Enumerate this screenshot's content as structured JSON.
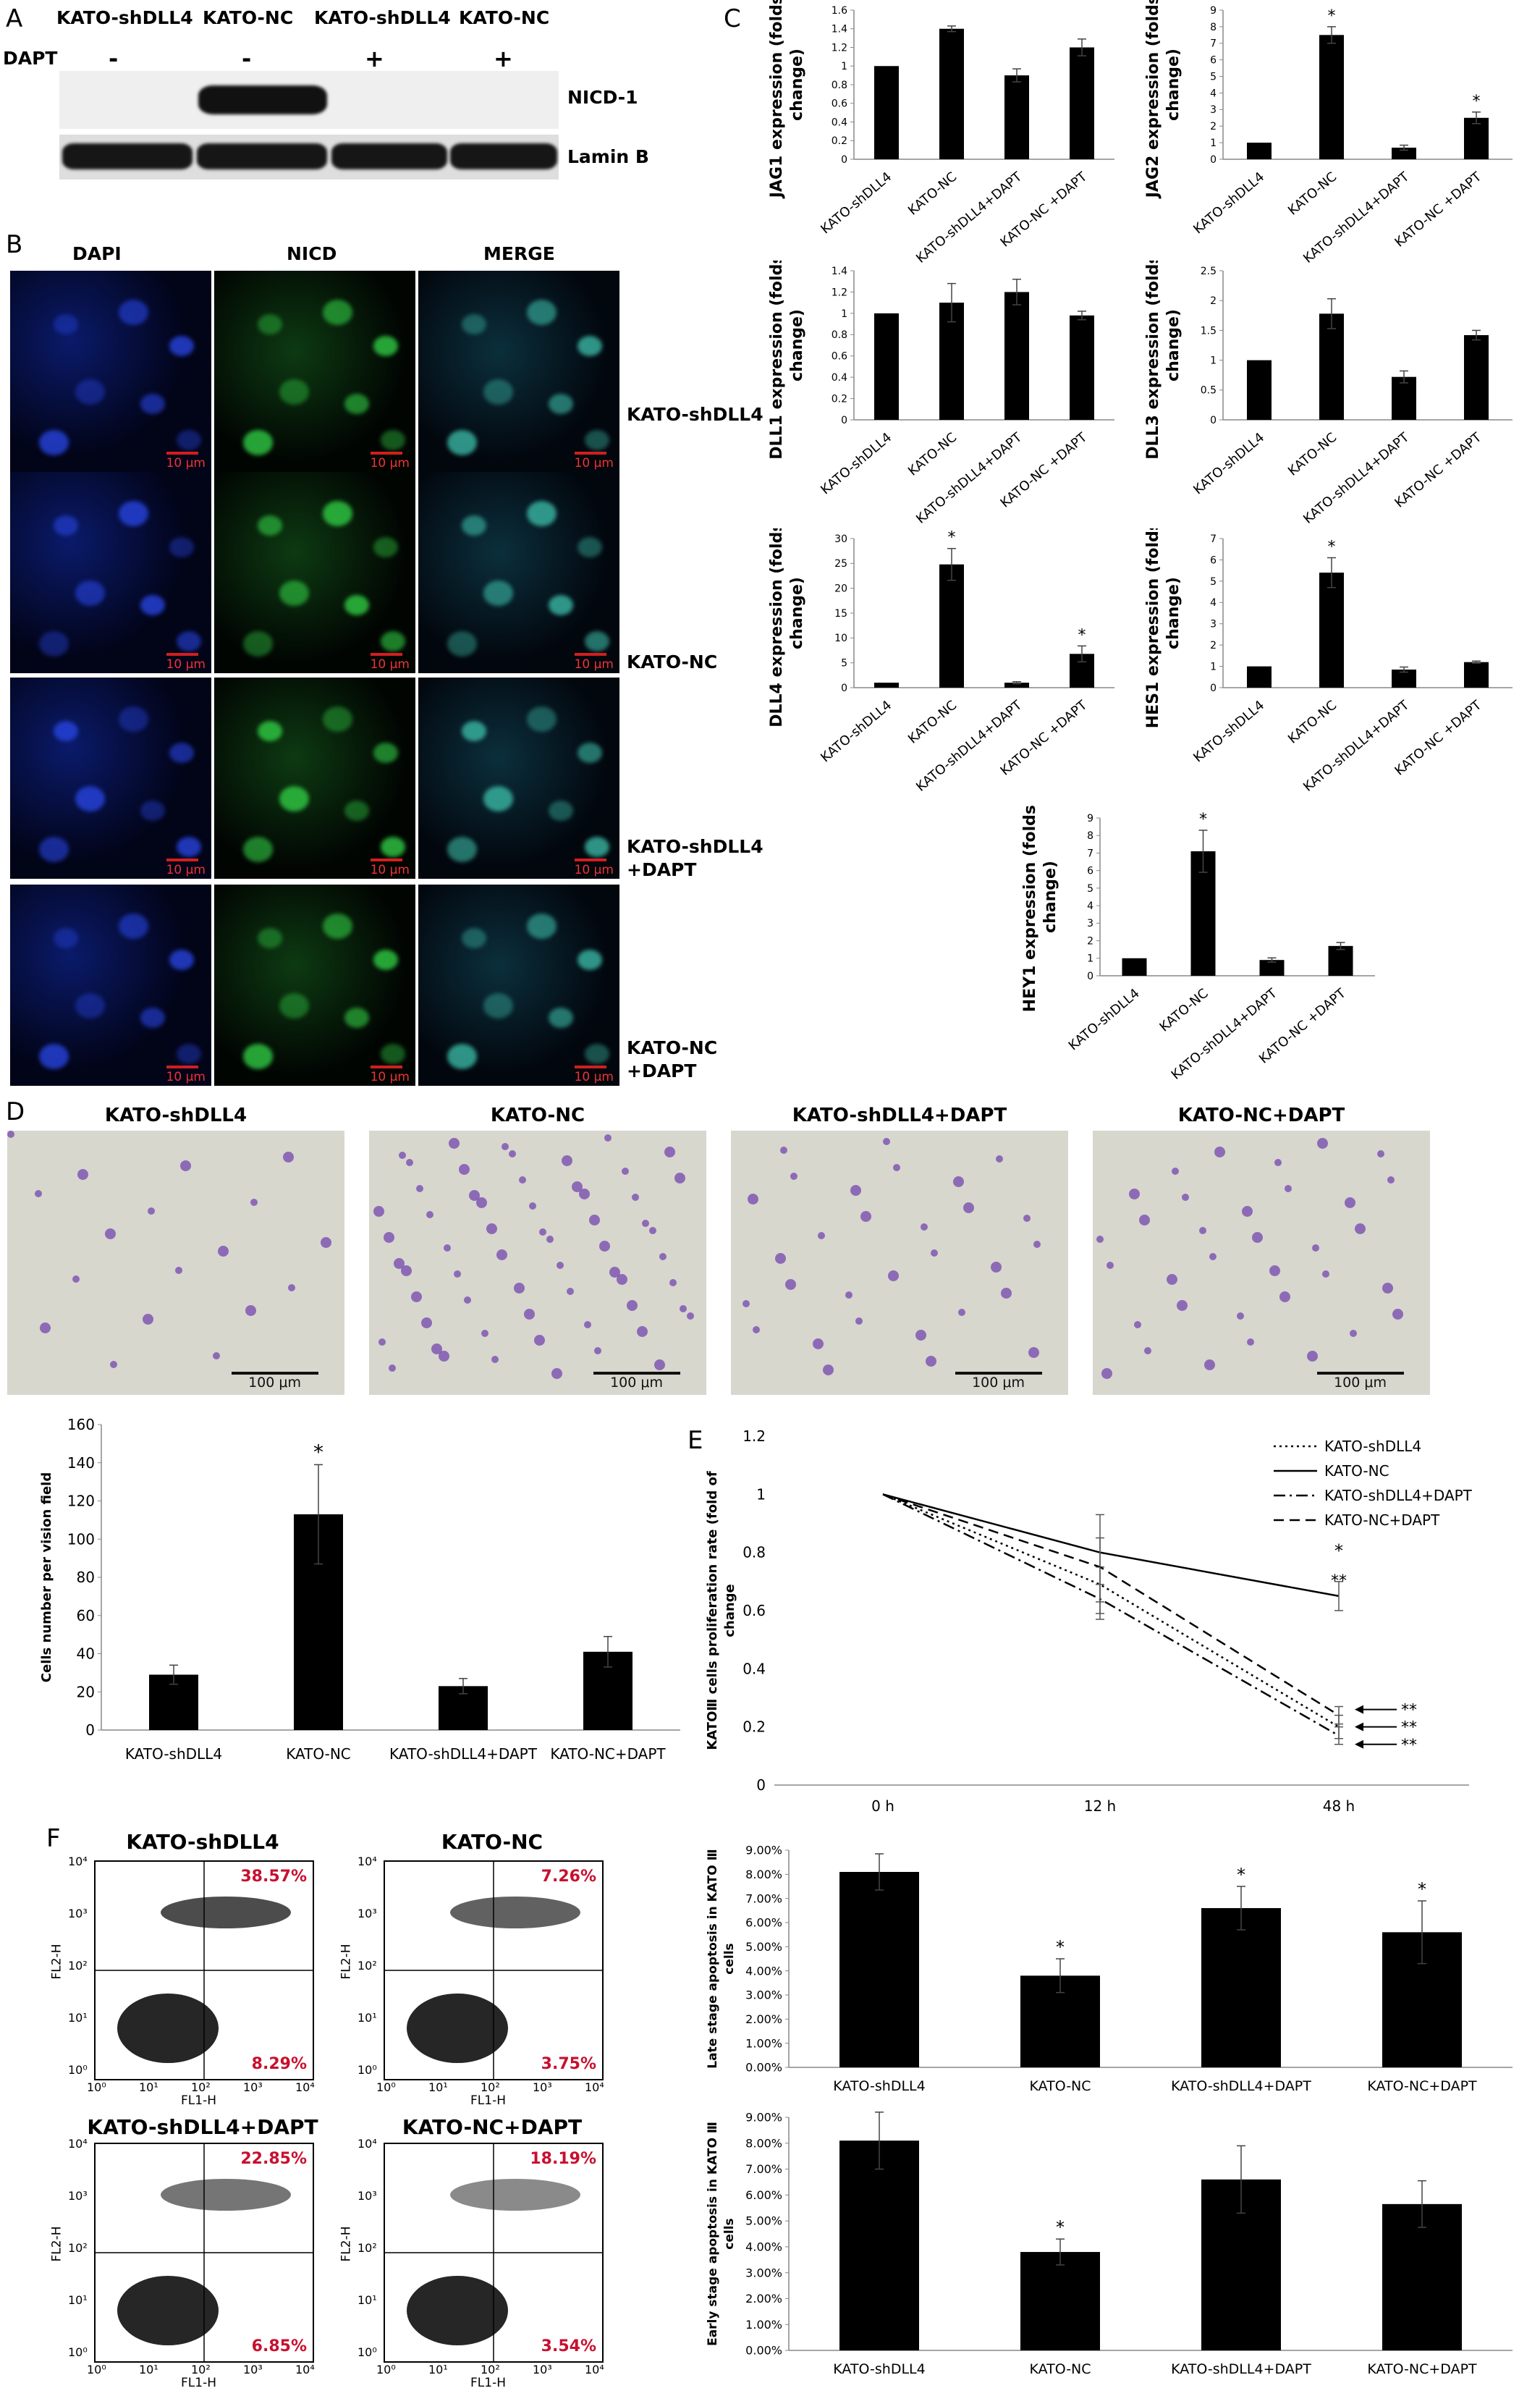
{
  "panels": {
    "A": "A",
    "B": "B",
    "C": "C",
    "D": "D",
    "E": "E",
    "F": "F"
  },
  "panel_a": {
    "lanes": [
      "KATO-shDLL4",
      "KATO-NC",
      "KATO-shDLL4",
      "KATO-NC"
    ],
    "dapt_label": "DAPT",
    "dapt_values": [
      "-",
      "-",
      "+",
      "+"
    ],
    "bands": [
      "NICD-1",
      "Lamin B"
    ]
  },
  "panel_b": {
    "columns": [
      "DAPI",
      "NICD",
      "MERGE"
    ],
    "rows": [
      "KATO-shDLL4",
      "KATO-NC",
      "KATO-shDLL4\n+DAPT",
      "KATO-NC\n+DAPT"
    ],
    "scale": "10 μm"
  },
  "panel_d_images": {
    "titles": [
      "KATO-shDLL4",
      "KATO-NC",
      "KATO-shDLL4+DAPT",
      "KATO-NC+DAPT"
    ],
    "scale": "100 μm"
  },
  "chart_data": [
    {
      "id": "jag1",
      "type": "bar",
      "ylabel": "JAG1 expression (folds of change)",
      "categories": [
        "KATO-shDLL4",
        "KATO-NC",
        "KATO-shDLL4+DAPT",
        "KATO-NC +DAPT"
      ],
      "values": [
        1.0,
        1.4,
        0.9,
        1.2
      ],
      "errors": [
        0,
        0.03,
        0.07,
        0.09
      ],
      "stars": [
        "",
        "",
        "",
        ""
      ],
      "ylim": [
        0,
        1.6
      ],
      "yticks": [
        "0",
        "0.2",
        "0.4",
        "0.6",
        "0.8",
        "1",
        "1.2",
        "1.4",
        "1.6"
      ]
    },
    {
      "id": "jag2",
      "type": "bar",
      "ylabel": "JAG2 expression (folds of change)",
      "categories": [
        "KATO-shDLL4",
        "KATO-NC",
        "KATO-shDLL4+DAPT",
        "KATO-NC +DAPT"
      ],
      "values": [
        1.0,
        7.5,
        0.7,
        2.5
      ],
      "errors": [
        0,
        0.5,
        0.15,
        0.35
      ],
      "stars": [
        "",
        "*",
        "",
        "*"
      ],
      "ylim": [
        0,
        9
      ],
      "yticks": [
        "0",
        "1",
        "2",
        "3",
        "4",
        "5",
        "6",
        "7",
        "8",
        "9"
      ]
    },
    {
      "id": "dll1",
      "type": "bar",
      "ylabel": "DLL1 expression (folds of change)",
      "categories": [
        "KATO-shDLL4",
        "KATO-NC",
        "KATO-shDLL4+DAPT",
        "KATO-NC +DAPT"
      ],
      "values": [
        1.0,
        1.1,
        1.2,
        0.98
      ],
      "errors": [
        0,
        0.18,
        0.12,
        0.04
      ],
      "stars": [
        "",
        "",
        "",
        ""
      ],
      "ylim": [
        0,
        1.4
      ],
      "yticks": [
        "0",
        "0.2",
        "0.4",
        "0.6",
        "0.8",
        "1",
        "1.2",
        "1.4"
      ]
    },
    {
      "id": "dll3",
      "type": "bar",
      "ylabel": "DLL3 expression (folds of change)",
      "categories": [
        "KATO-shDLL4",
        "KATO-NC",
        "KATO-shDLL4+DAPT",
        "KATO-NC +DAPT"
      ],
      "values": [
        1.0,
        1.78,
        0.72,
        1.42
      ],
      "errors": [
        0,
        0.25,
        0.1,
        0.08
      ],
      "stars": [
        "",
        "",
        "",
        ""
      ],
      "ylim": [
        0,
        2.5
      ],
      "yticks": [
        "0",
        "0.5",
        "1",
        "1.5",
        "2",
        "2.5"
      ]
    },
    {
      "id": "dll4",
      "type": "bar",
      "ylabel": "DLL4 expression (folds of change)",
      "categories": [
        "KATO-shDLL4",
        "KATO-NC",
        "KATO-shDLL4+DAPT",
        "KATO-NC +DAPT"
      ],
      "values": [
        1.0,
        24.8,
        1.0,
        6.8
      ],
      "errors": [
        0,
        3.2,
        0.2,
        1.6
      ],
      "stars": [
        "",
        "*",
        "",
        "*"
      ],
      "ylim": [
        0,
        30
      ],
      "yticks": [
        "0",
        "5",
        "10",
        "15",
        "20",
        "25",
        "30"
      ]
    },
    {
      "id": "hes1",
      "type": "bar",
      "ylabel": "HES1 expression (folds of change)",
      "categories": [
        "KATO-shDLL4",
        "KATO-NC",
        "KATO-shDLL4+DAPT",
        "KATO-NC +DAPT"
      ],
      "values": [
        1.0,
        5.4,
        0.85,
        1.2
      ],
      "errors": [
        0,
        0.7,
        0.12,
        0.05
      ],
      "stars": [
        "",
        "*",
        "",
        ""
      ],
      "ylim": [
        0,
        7
      ],
      "yticks": [
        "0",
        "1",
        "2",
        "3",
        "4",
        "5",
        "6",
        "7"
      ]
    },
    {
      "id": "hey1",
      "type": "bar",
      "ylabel": "HEY1 expression (folds of change)",
      "categories": [
        "KATO-shDLL4",
        "KATO-NC",
        "KATO-shDLL4+DAPT",
        "KATO-NC +DAPT"
      ],
      "values": [
        1.0,
        7.1,
        0.9,
        1.7
      ],
      "errors": [
        0,
        1.2,
        0.12,
        0.2
      ],
      "stars": [
        "",
        "*",
        "",
        ""
      ],
      "ylim": [
        0,
        9
      ],
      "yticks": [
        "0",
        "1",
        "2",
        "3",
        "4",
        "5",
        "6",
        "7",
        "8",
        "9"
      ]
    },
    {
      "id": "migration",
      "type": "bar",
      "ylabel": "Cells number per vision field",
      "categories": [
        "KATO-shDLL4",
        "KATO-NC",
        "KATO-shDLL4+DAPT",
        "KATO-NC+DAPT"
      ],
      "values": [
        29,
        113,
        23,
        41
      ],
      "errors": [
        5,
        26,
        4,
        8
      ],
      "stars": [
        "",
        "*",
        "",
        ""
      ],
      "ylim": [
        0,
        160
      ],
      "yticks": [
        "0",
        "20",
        "40",
        "60",
        "80",
        "100",
        "120",
        "140",
        "160"
      ]
    },
    {
      "id": "proliferation",
      "type": "line",
      "ylabel": "KATOⅢ cells proliferation rate (fold of change)",
      "x": [
        "0 h",
        "12 h",
        "48 h"
      ],
      "series": [
        {
          "name": "KATO-shDLL4",
          "values": [
            1.0,
            0.69,
            0.2
          ],
          "errors": [
            0,
            0.06,
            0.04
          ],
          "style": "dotted"
        },
        {
          "name": "KATO-NC",
          "values": [
            1.0,
            0.8,
            0.65
          ],
          "errors": [
            0,
            0.05,
            0.05
          ],
          "style": "solid"
        },
        {
          "name": "KATO-shDLL4+DAPT",
          "values": [
            1.0,
            0.64,
            0.17
          ],
          "errors": [
            0,
            0.05,
            0.03
          ],
          "style": "dashdot"
        },
        {
          "name": "KATO-NC+DAPT",
          "values": [
            1.0,
            0.75,
            0.24
          ],
          "errors": [
            0,
            0.18,
            0.03
          ],
          "style": "dashed"
        }
      ],
      "stars_nc": "*",
      "stars_nc2": "**",
      "arrows": [
        "**",
        "**",
        "**"
      ],
      "ylim": [
        0,
        1.2
      ],
      "yticks": [
        "0",
        "0.2",
        "0.4",
        "0.6",
        "0.8",
        "1",
        "1.2"
      ],
      "legend": "top-right"
    },
    {
      "id": "late_apop",
      "type": "bar",
      "ylabel": "Late stage apoptosis in KATO Ⅲ cells",
      "categories": [
        "KATO-shDLL4",
        "KATO-NC",
        "KATO-shDLL4+DAPT",
        "KATO-NC+DAPT"
      ],
      "values": [
        8.1,
        3.8,
        6.6,
        5.6
      ],
      "errors": [
        0.75,
        0.7,
        0.9,
        1.3
      ],
      "stars": [
        "",
        "*",
        "*",
        "*"
      ],
      "ylim": [
        0,
        9
      ],
      "yticks": [
        "0.00%",
        "1.00%",
        "2.00%",
        "3.00%",
        "4.00%",
        "5.00%",
        "6.00%",
        "7.00%",
        "8.00%",
        "9.00%"
      ]
    },
    {
      "id": "early_apop",
      "type": "bar",
      "ylabel": "Early stage apoptosis in KATO Ⅲ cells",
      "categories": [
        "KATO-shDLL4",
        "KATO-NC",
        "KATO-shDLL4+DAPT",
        "KATO-NC+DAPT"
      ],
      "values": [
        8.1,
        3.8,
        6.6,
        5.65
      ],
      "errors": [
        1.1,
        0.5,
        1.3,
        0.9
      ],
      "stars": [
        "",
        "*",
        "",
        ""
      ],
      "ylim": [
        0,
        9
      ],
      "yticks": [
        "0.00%",
        "1.00%",
        "2.00%",
        "3.00%",
        "4.00%",
        "5.00%",
        "6.00%",
        "7.00%",
        "8.00%",
        "9.00%"
      ]
    }
  ],
  "panel_f": {
    "plots": [
      {
        "title": "KATO-shDLL4",
        "upper": "38.57%",
        "lower": "8.29%"
      },
      {
        "title": "KATO-NC",
        "upper": "7.26%",
        "lower": "3.75%"
      },
      {
        "title": "KATO-shDLL4+DAPT",
        "upper": "22.85%",
        "lower": "6.85%"
      },
      {
        "title": "KATO-NC+DAPT",
        "upper": "18.19%",
        "lower": "3.54%"
      }
    ],
    "xlabel": "FL1-H",
    "ylabel": "FL2-H",
    "ticks": [
      "10⁰",
      "10¹",
      "10²",
      "10³",
      "10⁴"
    ]
  },
  "colors": {
    "pct_red": "#c8102e",
    "scale_red": "#d21e1e"
  }
}
